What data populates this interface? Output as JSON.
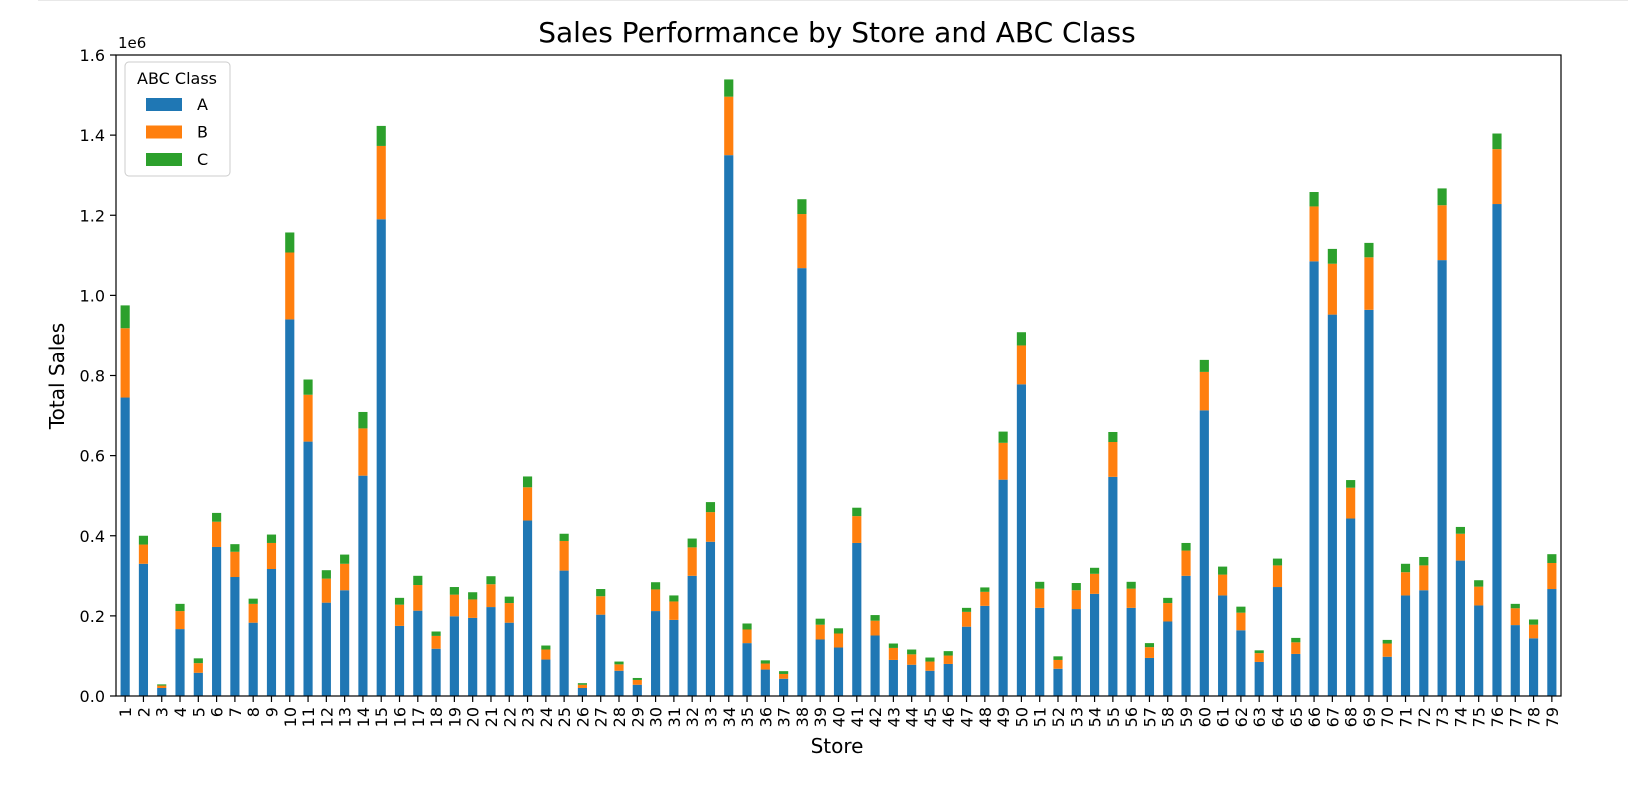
{
  "chart_data": {
    "type": "bar",
    "stacked": true,
    "title": "Sales Performance by Store and ABC Class",
    "xlabel": "Store",
    "ylabel": "Total Sales",
    "y_offset_text": "1e6",
    "ylim": [
      0,
      1.6
    ],
    "y_ticks": [
      "0.0",
      "0.2",
      "0.4",
      "0.6",
      "0.8",
      "1.0",
      "1.2",
      "1.4",
      "1.6"
    ],
    "legend": {
      "title": "ABC Class",
      "placement": "top-left"
    },
    "grid": false,
    "colors": {
      "A": "#1f77b4",
      "B": "#ff7f0e",
      "C": "#2ca02c"
    },
    "categories": [
      "1",
      "2",
      "3",
      "4",
      "5",
      "6",
      "7",
      "8",
      "9",
      "10",
      "11",
      "12",
      "13",
      "14",
      "15",
      "16",
      "17",
      "18",
      "19",
      "20",
      "21",
      "22",
      "23",
      "24",
      "25",
      "26",
      "27",
      "28",
      "29",
      "30",
      "31",
      "32",
      "33",
      "34",
      "35",
      "36",
      "37",
      "38",
      "39",
      "40",
      "41",
      "42",
      "43",
      "44",
      "45",
      "46",
      "47",
      "48",
      "49",
      "50",
      "51",
      "52",
      "53",
      "54",
      "55",
      "56",
      "57",
      "58",
      "59",
      "60",
      "61",
      "62",
      "63",
      "64",
      "65",
      "66",
      "67",
      "68",
      "69",
      "70",
      "71",
      "72",
      "73",
      "74",
      "75",
      "76",
      "77",
      "78",
      "79"
    ],
    "series": [
      {
        "name": "A",
        "values": [
          0.745,
          0.33,
          0.02,
          0.167,
          0.058,
          0.372,
          0.297,
          0.183,
          0.317,
          0.94,
          0.635,
          0.233,
          0.264,
          0.55,
          1.19,
          0.175,
          0.213,
          0.118,
          0.199,
          0.195,
          0.222,
          0.183,
          0.438,
          0.091,
          0.313,
          0.02,
          0.203,
          0.063,
          0.028,
          0.212,
          0.19,
          0.3,
          0.385,
          1.35,
          0.132,
          0.066,
          0.043,
          1.068,
          0.141,
          0.121,
          0.382,
          0.151,
          0.09,
          0.078,
          0.063,
          0.08,
          0.173,
          0.225,
          0.54,
          0.778,
          0.22,
          0.068,
          0.217,
          0.255,
          0.547,
          0.22,
          0.095,
          0.186,
          0.3,
          0.713,
          0.251,
          0.164,
          0.085,
          0.272,
          0.105,
          1.085,
          0.952,
          0.443,
          0.964,
          0.098,
          0.251,
          0.264,
          1.088,
          0.338,
          0.226,
          1.228,
          0.177,
          0.144,
          0.267
        ]
      },
      {
        "name": "B",
        "values": [
          0.173,
          0.048,
          0.006,
          0.045,
          0.024,
          0.063,
          0.063,
          0.047,
          0.065,
          0.167,
          0.117,
          0.06,
          0.066,
          0.118,
          0.183,
          0.053,
          0.064,
          0.032,
          0.054,
          0.046,
          0.057,
          0.049,
          0.083,
          0.025,
          0.074,
          0.008,
          0.046,
          0.016,
          0.012,
          0.054,
          0.046,
          0.071,
          0.074,
          0.146,
          0.034,
          0.015,
          0.012,
          0.135,
          0.037,
          0.035,
          0.067,
          0.037,
          0.03,
          0.026,
          0.023,
          0.021,
          0.037,
          0.035,
          0.092,
          0.097,
          0.048,
          0.022,
          0.047,
          0.05,
          0.087,
          0.048,
          0.027,
          0.046,
          0.063,
          0.096,
          0.052,
          0.044,
          0.022,
          0.054,
          0.029,
          0.137,
          0.127,
          0.077,
          0.131,
          0.033,
          0.058,
          0.062,
          0.137,
          0.067,
          0.047,
          0.137,
          0.042,
          0.034,
          0.065
        ]
      },
      {
        "name": "C",
        "values": [
          0.057,
          0.022,
          0.003,
          0.018,
          0.012,
          0.022,
          0.019,
          0.013,
          0.021,
          0.05,
          0.038,
          0.021,
          0.023,
          0.041,
          0.05,
          0.017,
          0.023,
          0.011,
          0.019,
          0.018,
          0.02,
          0.016,
          0.027,
          0.01,
          0.018,
          0.004,
          0.018,
          0.007,
          0.005,
          0.018,
          0.015,
          0.022,
          0.025,
          0.043,
          0.015,
          0.008,
          0.007,
          0.037,
          0.015,
          0.013,
          0.021,
          0.014,
          0.011,
          0.012,
          0.01,
          0.011,
          0.01,
          0.011,
          0.028,
          0.033,
          0.017,
          0.009,
          0.018,
          0.015,
          0.025,
          0.017,
          0.01,
          0.013,
          0.019,
          0.03,
          0.02,
          0.015,
          0.007,
          0.017,
          0.011,
          0.036,
          0.037,
          0.019,
          0.036,
          0.009,
          0.021,
          0.021,
          0.042,
          0.017,
          0.016,
          0.039,
          0.011,
          0.013,
          0.022
        ]
      }
    ]
  }
}
